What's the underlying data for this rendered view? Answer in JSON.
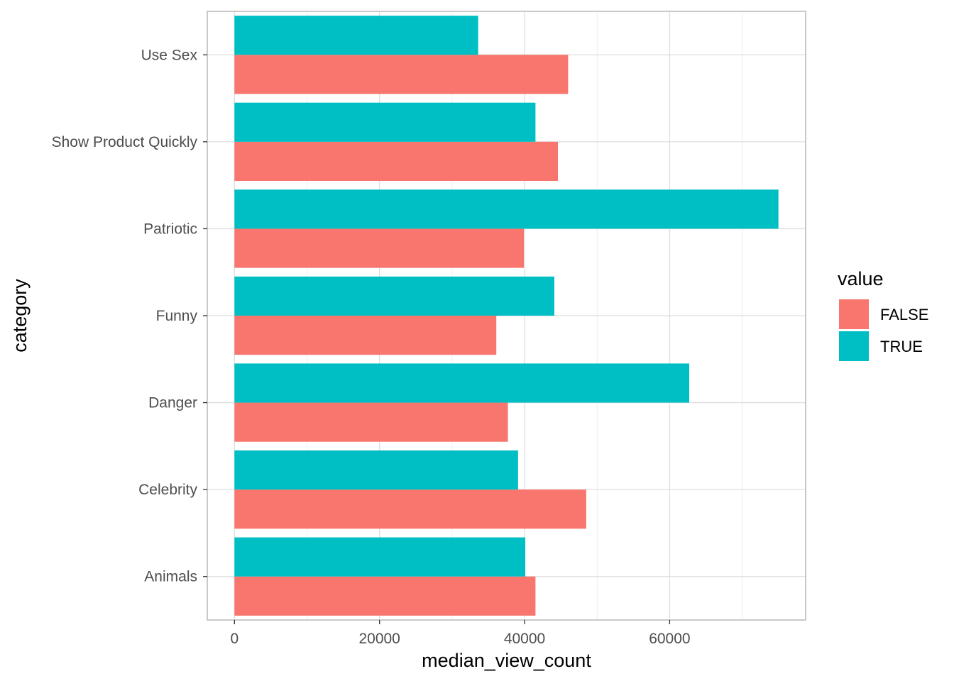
{
  "chart_data": {
    "type": "bar",
    "orientation": "horizontal",
    "grouping": "dodge",
    "categories": [
      "Animals",
      "Celebrity",
      "Danger",
      "Funny",
      "Patriotic",
      "Show Product Quickly",
      "Use Sex"
    ],
    "series": [
      {
        "name": "FALSE",
        "color": "#F8766D",
        "values": [
          41500,
          48500,
          37700,
          36100,
          39900,
          44600,
          46000
        ]
      },
      {
        "name": "TRUE",
        "color": "#00BFC4",
        "values": [
          40100,
          39100,
          62700,
          44100,
          75000,
          41500,
          33600
        ]
      }
    ],
    "xlabel": "median_view_count",
    "ylabel": "category",
    "xlim": [
      -3750,
      78750
    ],
    "x_ticks": [
      0,
      20000,
      40000,
      60000
    ],
    "x_tick_labels": [
      "0",
      "20000",
      "40000",
      "60000"
    ],
    "legend": {
      "title": "value",
      "placement": "right",
      "entries": [
        "FALSE",
        "TRUE"
      ]
    },
    "grid": true,
    "theme": "light"
  }
}
